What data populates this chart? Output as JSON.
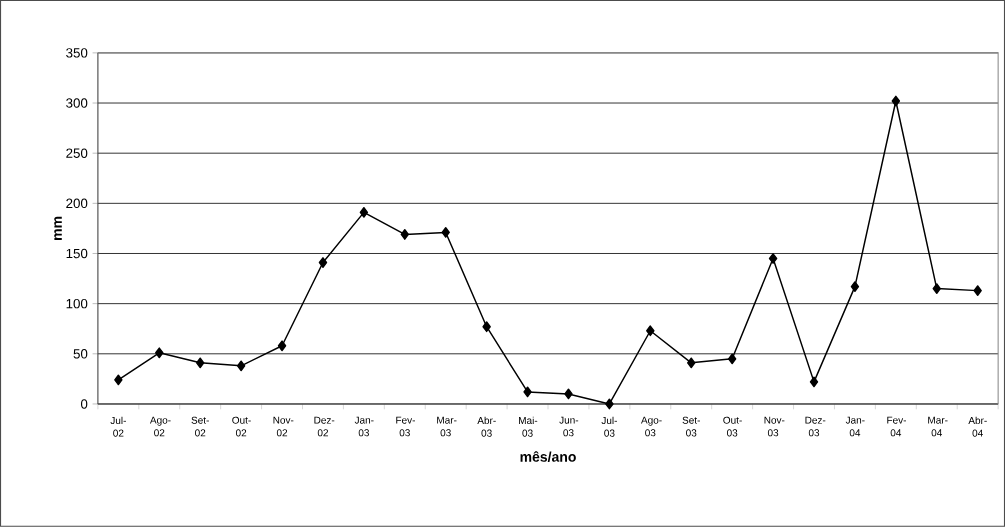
{
  "chart_data": {
    "type": "line",
    "xlabel": "mês/ano",
    "ylabel": "mm",
    "categories": [
      "Jul-02",
      "Ago-02",
      "Set-02",
      "Out-02",
      "Nov-02",
      "Dez-02",
      "Jan-03",
      "Fev-03",
      "Mar-03",
      "Abr-03",
      "Mai-03",
      "Jun-03",
      "Jul-03",
      "Ago-03",
      "Set-03",
      "Out-03",
      "Nov-03",
      "Dez-03",
      "Jan-04",
      "Fev-04",
      "Mar-04",
      "Abr-04"
    ],
    "series": [
      {
        "color": "#000000",
        "values": [
          24,
          51,
          41,
          38,
          58,
          141,
          191,
          169,
          171,
          77,
          12,
          10,
          0,
          73,
          41,
          45,
          145,
          22,
          117,
          302,
          115,
          113
        ]
      }
    ],
    "ylim": [
      0,
      350
    ],
    "yticks": [
      0,
      50,
      100,
      150,
      200,
      250,
      300,
      350
    ],
    "grid": "y",
    "marker": "diamond",
    "line_style": "solid"
  }
}
